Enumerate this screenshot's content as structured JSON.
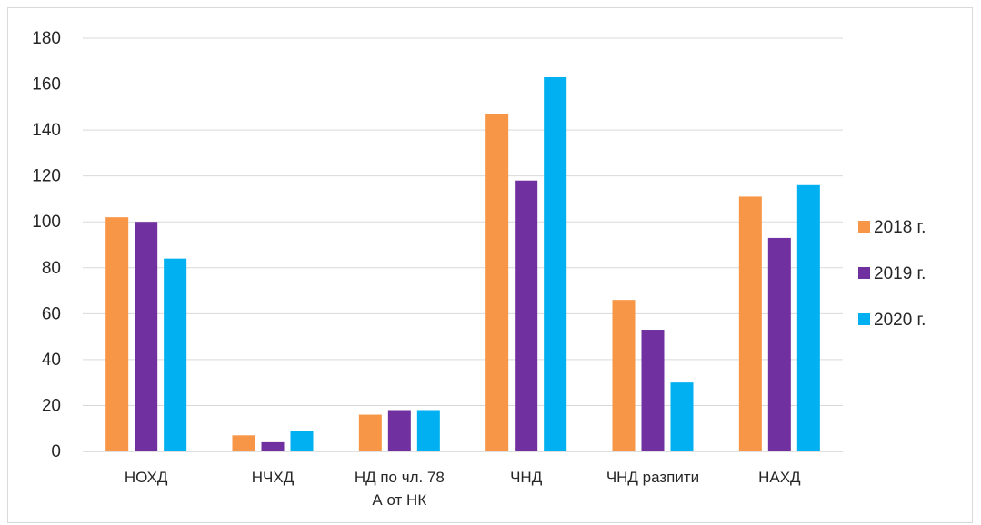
{
  "chart_data": {
    "type": "bar",
    "categories": [
      [
        "НОХД"
      ],
      [
        "НЧХД"
      ],
      [
        "НД по чл. 78",
        "А от НК"
      ],
      [
        "ЧНД"
      ],
      [
        "ЧНД разпити"
      ],
      [
        "НАХД"
      ]
    ],
    "series": [
      {
        "name": "2018 г.",
        "color": "#F79646",
        "values": [
          102,
          7,
          16,
          147,
          66,
          111
        ]
      },
      {
        "name": "2019 г.",
        "color": "#7030A0",
        "values": [
          100,
          4,
          18,
          118,
          53,
          93
        ]
      },
      {
        "name": "2020 г.",
        "color": "#00B0F0",
        "values": [
          84,
          9,
          18,
          163,
          30,
          116
        ]
      }
    ],
    "ylim": [
      0,
      180
    ],
    "yticks": [
      0,
      20,
      40,
      60,
      80,
      100,
      120,
      140,
      160,
      180
    ],
    "grid": true,
    "legend_position": "right",
    "title": "",
    "xlabel": "",
    "ylabel": ""
  }
}
